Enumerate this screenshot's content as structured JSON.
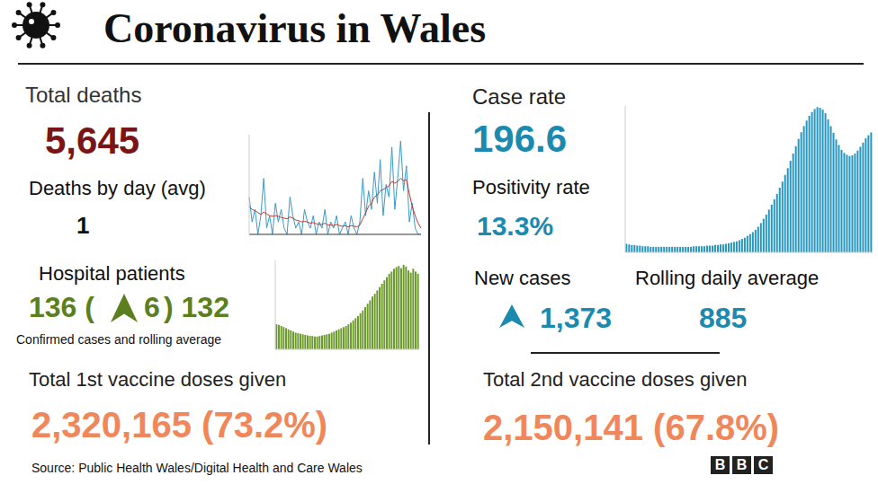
{
  "title": "Coronavirus in Wales",
  "source": "Source: Public Health Wales/Digital Health and Care Wales",
  "logo": "BBC",
  "stats": {
    "total_deaths": {
      "label": "Total deaths",
      "value": "5,645"
    },
    "deaths_by_day": {
      "label": "Deaths by day (avg)",
      "value": "1"
    },
    "hospital_patients": {
      "label": "Hospital patients",
      "confirmed": "136 (",
      "change": "6",
      "rolling_average": ") 132",
      "note": "Confirmed cases and rolling average"
    },
    "first_doses": {
      "label": "Total 1st vaccine doses given",
      "value": "2,320,165 (73.2%)"
    },
    "case_rate": {
      "label": "Case rate",
      "value": "196.6"
    },
    "positivity_rate": {
      "label": "Positivity rate",
      "value": "13.3%"
    },
    "new_cases": {
      "label": "New cases",
      "value": "1,373"
    },
    "rolling_daily_average": {
      "label": "Rolling daily average",
      "value": "885"
    },
    "second_doses": {
      "label": "Total 2nd vaccine doses given",
      "value": "2,150,141 (67.8%)"
    }
  },
  "chart_data": [
    {
      "type": "line",
      "series": [
        {
          "color": "#3a9bc6",
          "values": [
            6,
            2,
            4,
            0,
            3,
            9,
            1,
            3,
            0,
            5,
            2,
            4,
            1,
            0,
            6,
            3,
            1,
            2,
            0,
            4,
            2,
            1,
            3,
            0,
            2,
            1,
            4,
            0,
            2,
            1,
            3,
            0,
            1,
            2,
            0,
            3,
            1,
            0,
            2,
            9,
            3,
            7,
            4,
            10,
            5,
            12,
            3,
            8,
            6,
            14,
            4,
            9,
            15,
            7,
            11,
            2,
            5,
            1,
            0,
            0
          ]
        },
        {
          "color": "#c0392b",
          "values": [
            4.5,
            4,
            3.8,
            3.5,
            3.2,
            3.6,
            3.3,
            3,
            2.9,
            3,
            2.9,
            2.7,
            2.6,
            2.5,
            2.8,
            2.6,
            2.3,
            2.2,
            2,
            2.1,
            2,
            1.8,
            1.9,
            1.7,
            1.6,
            1.6,
            1.8,
            1.5,
            1.5,
            1.4,
            1.6,
            1.4,
            1.3,
            1.4,
            1.2,
            1.4,
            1.3,
            1.2,
            1.5,
            2.5,
            3.5,
            4.5,
            5,
            6,
            6.3,
            7,
            7.2,
            7.5,
            7.8,
            8.5,
            8.2,
            8.5,
            9,
            8.6,
            8.8,
            6.5,
            4.5,
            3,
            1.8,
            1
          ]
        }
      ],
      "ylim": [
        0,
        16
      ],
      "tick_labels": false,
      "grid": false
    },
    {
      "type": "bar",
      "values": [
        45,
        44,
        42,
        40,
        38,
        36,
        34,
        32,
        30,
        29,
        28,
        27,
        26,
        25,
        24,
        24,
        23,
        23,
        24,
        25,
        26,
        27,
        28,
        30,
        32,
        34,
        36,
        38,
        40,
        42,
        45,
        48,
        52,
        56,
        60,
        65,
        70,
        76,
        82,
        88,
        95,
        100,
        106,
        112,
        118,
        124,
        130,
        136,
        140,
        145,
        148,
        150,
        146,
        152,
        149,
        142,
        138,
        145,
        140,
        136
      ],
      "color": "#6e9b2e",
      "ylim": [
        0,
        160
      ],
      "tick_labels": false,
      "grid": false
    },
    {
      "type": "bar",
      "values": [
        14,
        13,
        12,
        12,
        11,
        11,
        10,
        10,
        10,
        9,
        9,
        9,
        9,
        9,
        9,
        9,
        9,
        9,
        9,
        9,
        9,
        9,
        9,
        9,
        9,
        10,
        10,
        10,
        10,
        10,
        11,
        11,
        11,
        12,
        12,
        13,
        13,
        14,
        15,
        16,
        17,
        18,
        20,
        22,
        24,
        27,
        30,
        33,
        37,
        42,
        48,
        55,
        62,
        70,
        78,
        87,
        96,
        106,
        116,
        127,
        138,
        150,
        162,
        174,
        186,
        197,
        207,
        216,
        224,
        230,
        235,
        238,
        237,
        234,
        228,
        218,
        207,
        196,
        185,
        176,
        168,
        163,
        160,
        158,
        159,
        162,
        167,
        173,
        180,
        187,
        192,
        196.6
      ],
      "color": "#2596be",
      "ylim": [
        0,
        240
      ],
      "tick_labels": false,
      "grid": false
    }
  ]
}
